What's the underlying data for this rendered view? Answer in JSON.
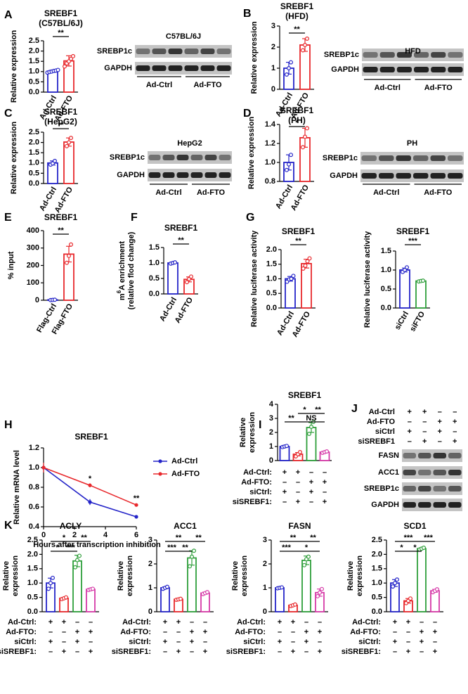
{
  "chart_data": [
    {
      "type": "bar",
      "panel": "A",
      "title": [
        "SREBF1",
        "(C57BL/6J)"
      ],
      "y_label": [
        "Relative expression"
      ],
      "categories": [
        "Ad-Ctrl",
        "Ad-FTO"
      ],
      "values": [
        1.02,
        1.52
      ],
      "errors": [
        0.05,
        0.25
      ],
      "points": [
        [
          0.95,
          0.98,
          1.0,
          1.03,
          1.05,
          1.08
        ],
        [
          1.25,
          1.4,
          1.5,
          1.62,
          1.75
        ]
      ],
      "colors": [
        "#2424c8",
        "#e8282c"
      ],
      "ylim": [
        0,
        2.5
      ],
      "yticks": [
        {
          "value": 0,
          "label": "0.0"
        },
        0.5,
        {
          "value": 1,
          "label": "1.0"
        },
        1.5,
        {
          "value": 2,
          "label": "2.0"
        },
        2.5
      ],
      "significance": [
        "**"
      ]
    },
    {
      "type": "blot",
      "title": "C57BL/6J",
      "rows": [
        "SREBP1c",
        "GAPDH"
      ],
      "groups": [
        "Ad-Ctrl",
        "Ad-FTO"
      ]
    },
    {
      "type": "bar",
      "panel": "B",
      "title": [
        "SREBF1",
        "(HFD)"
      ],
      "y_label": [
        "Relative expression"
      ],
      "categories": [
        "Ad-Ctrl",
        "Ad-FTO"
      ],
      "values": [
        1.0,
        2.1
      ],
      "errors": [
        0.28,
        0.3
      ],
      "points": [
        [
          0.7,
          1.0,
          1.28
        ],
        [
          1.85,
          2.1,
          2.4
        ]
      ],
      "colors": [
        "#2424c8",
        "#e8282c"
      ],
      "ylim": [
        0,
        3
      ],
      "yticks": [
        0,
        1,
        2,
        3
      ],
      "significance": [
        "**"
      ]
    },
    {
      "type": "blot",
      "title": "HFD",
      "rows": [
        "SREBP1c",
        "GAPDH"
      ],
      "groups": [
        "Ad-Ctrl",
        "Ad-FTO"
      ]
    },
    {
      "type": "bar",
      "panel": "C",
      "title": [
        "SREBF1",
        "(HepG2)"
      ],
      "y_label": [
        "Relative expression"
      ],
      "categories": [
        "Ad-Ctrl",
        "Ad-FTO"
      ],
      "values": [
        1.0,
        2.02
      ],
      "errors": [
        0.1,
        0.2
      ],
      "points": [
        [
          0.92,
          0.98,
          1.1
        ],
        [
          1.82,
          2.0,
          2.22
        ]
      ],
      "colors": [
        "#2424c8",
        "#e8282c"
      ],
      "ylim": [
        0,
        2.5
      ],
      "yticks": [
        {
          "value": 0,
          "label": "0.0"
        },
        0.5,
        {
          "value": 1,
          "label": "1.0"
        },
        1.5,
        {
          "value": 2,
          "label": "2.0"
        },
        2.5
      ],
      "significance": [
        "**"
      ]
    },
    {
      "type": "blot",
      "title": "HepG2",
      "rows": [
        "SREBP1c",
        "GAPDH"
      ],
      "groups": [
        "Ad-Ctrl",
        "Ad-FTO"
      ]
    },
    {
      "type": "bar",
      "panel": "D",
      "title": [
        "SREBF1",
        "(PH)"
      ],
      "y_label": [
        "Relative expression"
      ],
      "categories": [
        "Ad-Ctrl",
        "Ad-FTO"
      ],
      "values": [
        1.0,
        1.26
      ],
      "errors": [
        0.08,
        0.1
      ],
      "points": [
        [
          0.92,
          0.98,
          1.08
        ],
        [
          1.16,
          1.27,
          1.36
        ]
      ],
      "colors": [
        "#2424c8",
        "#e8282c"
      ],
      "ylim": [
        0.8,
        1.4
      ],
      "yticks": [
        0.8,
        {
          "value": 1,
          "label": "1.0"
        },
        1.2,
        1.4
      ],
      "significance": [
        "*"
      ]
    },
    {
      "type": "blot",
      "title": "PH",
      "rows": [
        "SREBP1c",
        "GAPDH"
      ],
      "groups": [
        "Ad-Ctrl",
        "Ad-FTO"
      ]
    },
    {
      "type": "bar",
      "panel": "E",
      "title": [
        "SREBF1"
      ],
      "y_label": [
        "% input"
      ],
      "categories": [
        "Flag-Ctrl",
        "Flag-FTO"
      ],
      "values": [
        2,
        265
      ],
      "errors": [
        1,
        45
      ],
      "points": [
        [
          1,
          2,
          3
        ],
        [
          215,
          255,
          320
        ]
      ],
      "colors": [
        "#2424c8",
        "#e8282c"
      ],
      "ylim": [
        0,
        400
      ],
      "yticks": [
        0,
        100,
        200,
        300,
        400
      ],
      "significance": [
        "**"
      ]
    },
    {
      "type": "bar",
      "panel": "F",
      "title": [
        "SREBF1"
      ],
      "y_label": [
        [
          "m",
          "6",
          "A enrichment"
        ],
        "(relative flod change)"
      ],
      "categories": [
        "Ad-Ctrl",
        "Ad-FTO"
      ],
      "values": [
        1.0,
        0.47
      ],
      "errors": [
        0.02,
        0.08
      ],
      "points": [
        [
          0.98,
          1.0,
          1.02
        ],
        [
          0.38,
          0.48,
          0.56
        ]
      ],
      "colors": [
        "#2424c8",
        "#e8282c"
      ],
      "ylim": [
        0,
        1.5
      ],
      "yticks": [
        {
          "value": 0,
          "label": "0.0"
        },
        0.5,
        {
          "value": 1,
          "label": "1.0"
        },
        1.5
      ],
      "significance": [
        "**"
      ]
    },
    {
      "type": "bar",
      "panel": "G",
      "title": [
        "SREBF1"
      ],
      "y_label": [
        "Relative luciferase activity"
      ],
      "categories": [
        "Ad-Ctrl",
        "Ad-FTO"
      ],
      "values": [
        1.0,
        1.52
      ],
      "errors": [
        0.08,
        0.15
      ],
      "points": [
        [
          0.9,
          0.98,
          1.0,
          1.1
        ],
        [
          1.35,
          1.45,
          1.6,
          1.7
        ]
      ],
      "colors": [
        "#2424c8",
        "#e8282c"
      ],
      "ylim": [
        0,
        2
      ],
      "yticks": [
        {
          "value": 0,
          "label": "0.0"
        },
        0.5,
        {
          "value": 1,
          "label": "1.0"
        },
        1.5,
        {
          "value": 2,
          "label": "2.0"
        }
      ],
      "significance": [
        "**"
      ]
    },
    {
      "type": "bar",
      "title": [
        "SREBF1"
      ],
      "y_label": [
        "Relative luciferase activity"
      ],
      "categories": [
        "siCtrl",
        "siFTO"
      ],
      "values": [
        1.0,
        0.71
      ],
      "errors": [
        0.05,
        0.01
      ],
      "points": [
        [
          0.95,
          1.0,
          1.07
        ],
        [
          0.7,
          0.71,
          0.72
        ]
      ],
      "colors": [
        "#2424c8",
        "#2e9e3a"
      ],
      "ylim": [
        0,
        1.5
      ],
      "yticks": [
        {
          "value": 0,
          "label": "0.0"
        },
        0.5,
        {
          "value": 1,
          "label": "1.0"
        },
        1.5
      ],
      "significance": [
        "***"
      ]
    },
    {
      "type": "line",
      "panel": "H",
      "title": "SREBF1",
      "y_label": "Relative mRNA level",
      "x_label": "Hours after transcription inhibition",
      "x": [
        0,
        3,
        6
      ],
      "series": [
        {
          "name": "Ad-Ctrl",
          "color": "#2424c8",
          "values": [
            1.0,
            0.65,
            0.5
          ],
          "errors": [
            0.02,
            0.03,
            0.01
          ]
        },
        {
          "name": "Ad-FTO",
          "color": "#e8282c",
          "values": [
            1.0,
            0.82,
            0.62
          ],
          "errors": [
            0.05,
            0.02,
            0.01
          ]
        }
      ],
      "xlim": [
        0,
        6
      ],
      "xticks": [
        0,
        2,
        4,
        6
      ],
      "ylim": [
        0.4,
        1.2
      ],
      "yticks": [
        0.4,
        0.6,
        0.8,
        {
          "value": 1,
          "label": "1.0"
        },
        1.2
      ],
      "significance": [
        "*",
        "**"
      ]
    },
    {
      "type": "bar",
      "panel": "I",
      "title": [
        "SREBF1"
      ],
      "y_label": [
        "Relative",
        "expression"
      ],
      "conditions": [
        {
          "label": "Ad-Ctrl:",
          "signs": [
            "+",
            "+",
            "–",
            "–"
          ]
        },
        {
          "label": "Ad-FTO:",
          "signs": [
            "–",
            "–",
            "+",
            "+"
          ]
        },
        {
          "label": "siCtrl:",
          "signs": [
            "+",
            "–",
            "+",
            "–"
          ]
        },
        {
          "label": "siSREBF1:",
          "signs": [
            "–",
            "+",
            "–",
            "+"
          ]
        }
      ],
      "values": [
        1.0,
        0.45,
        2.35,
        0.6
      ],
      "errors": [
        0.05,
        0.12,
        0.35,
        0.05
      ],
      "points": [
        [
          0.96,
          1.0,
          1.04
        ],
        [
          0.3,
          0.45,
          0.6
        ],
        [
          1.9,
          2.4,
          2.75
        ],
        [
          0.55,
          0.6,
          0.65
        ]
      ],
      "colors": [
        "#2424c8",
        "#e8282c",
        "#2e9e3a",
        "#d63aa8"
      ],
      "ylim": [
        0,
        4
      ],
      "yticks": [
        0,
        1,
        2,
        3,
        4
      ],
      "significance": [
        "*",
        "**",
        "**",
        "NS"
      ]
    },
    {
      "type": "blot",
      "panel": "J",
      "conditions": [
        {
          "label": "Ad-Ctrl",
          "signs": [
            "+",
            "+",
            "–",
            "–"
          ]
        },
        {
          "label": "Ad-FTO",
          "signs": [
            "–",
            "–",
            "+",
            "+"
          ]
        },
        {
          "label": "siCtrl",
          "signs": [
            "+",
            "–",
            "+",
            "–"
          ]
        },
        {
          "label": "siSREBF1",
          "signs": [
            "–",
            "+",
            "–",
            "+"
          ]
        }
      ],
      "rows": [
        "FASN",
        "ACC1",
        "SREBP1c",
        "GAPDH"
      ]
    },
    {
      "type": "bar",
      "panel": "K",
      "title": [
        "ACLY"
      ],
      "y_label": [
        "Relative",
        "expression"
      ],
      "conditions": [
        {
          "label": "Ad-Ctrl:",
          "signs": [
            "+",
            "+",
            "–",
            "–"
          ]
        },
        {
          "label": "Ad-FTO:",
          "signs": [
            "–",
            "–",
            "+",
            "+"
          ]
        },
        {
          "label": "siCtrl:",
          "signs": [
            "+",
            "–",
            "+",
            "–"
          ]
        },
        {
          "label": "siSREBF1:",
          "signs": [
            "–",
            "+",
            "–",
            "+"
          ]
        }
      ],
      "values": [
        1.0,
        0.47,
        1.77,
        0.78
      ],
      "errors": [
        0.17,
        0.03,
        0.2,
        0.02
      ],
      "points": [
        [
          0.8,
          1.0,
          1.18
        ],
        [
          0.44,
          0.47,
          0.5
        ],
        [
          1.55,
          1.8,
          1.95
        ],
        [
          0.76,
          0.78,
          0.8
        ]
      ],
      "colors": [
        "#2424c8",
        "#e8282c",
        "#2e9e3a",
        "#d63aa8"
      ],
      "ylim": [
        0,
        2.5
      ],
      "yticks": [
        {
          "value": 0,
          "label": "0.0"
        },
        0.5,
        {
          "value": 1,
          "label": "1.0"
        },
        1.5,
        {
          "value": 2,
          "label": "2.0"
        },
        2.5
      ],
      "significance": [
        "*",
        "**",
        "*",
        "***"
      ]
    },
    {
      "type": "bar",
      "title": [
        "ACC1"
      ],
      "y_label": [
        "Relative",
        "expression"
      ],
      "conditions": [
        {
          "label": "Ad-Ctrl:",
          "signs": [
            "+",
            "+",
            "–",
            "–"
          ]
        },
        {
          "label": "Ad-FTO:",
          "signs": [
            "–",
            "–",
            "+",
            "+"
          ]
        },
        {
          "label": "siCtrl:",
          "signs": [
            "+",
            "–",
            "+",
            "–"
          ]
        },
        {
          "label": "siSREBF1:",
          "signs": [
            "–",
            "+",
            "–",
            "+"
          ]
        }
      ],
      "values": [
        1.0,
        0.52,
        2.25,
        0.78
      ],
      "errors": [
        0.04,
        0.02,
        0.3,
        0.04
      ],
      "points": [
        [
          0.96,
          1.0,
          1.04
        ],
        [
          0.5,
          0.52,
          0.54
        ],
        [
          1.9,
          2.3,
          2.55
        ],
        [
          0.74,
          0.78,
          0.82
        ]
      ],
      "colors": [
        "#2424c8",
        "#e8282c",
        "#2e9e3a",
        "#d63aa8"
      ],
      "ylim": [
        0,
        3
      ],
      "yticks": [
        0,
        1,
        2,
        3
      ],
      "significance": [
        "**",
        "**",
        "***",
        "**"
      ]
    },
    {
      "type": "bar",
      "title": [
        "FASN"
      ],
      "y_label": [
        "Relative",
        "expression"
      ],
      "conditions": [
        {
          "label": "Ad-Ctrl:",
          "signs": [
            "+",
            "+",
            "–",
            "–"
          ]
        },
        {
          "label": "Ad-FTO:",
          "signs": [
            "–",
            "–",
            "+",
            "+"
          ]
        },
        {
          "label": "siCtrl:",
          "signs": [
            "+",
            "–",
            "+",
            "–"
          ]
        },
        {
          "label": "siSREBF1:",
          "signs": [
            "–",
            "+",
            "–",
            "+"
          ]
        }
      ],
      "values": [
        1.0,
        0.27,
        2.15,
        0.8
      ],
      "errors": [
        0.02,
        0.03,
        0.18,
        0.15
      ],
      "points": [
        [
          0.98,
          1.0,
          1.02
        ],
        [
          0.24,
          0.27,
          0.3
        ],
        [
          1.95,
          2.2,
          2.3
        ],
        [
          0.65,
          0.8,
          0.95
        ]
      ],
      "colors": [
        "#2424c8",
        "#e8282c",
        "#2e9e3a",
        "#d63aa8"
      ],
      "ylim": [
        0,
        3
      ],
      "yticks": [
        0,
        1,
        2,
        3
      ],
      "significance": [
        "**",
        "**",
        "***",
        "*"
      ]
    },
    {
      "type": "bar",
      "title": [
        "SCD1"
      ],
      "y_label": [
        "Relative",
        "expression"
      ],
      "conditions": [
        {
          "label": "Ad-Ctrl:",
          "signs": [
            "+",
            "+",
            "–",
            "–"
          ]
        },
        {
          "label": "Ad-FTO:",
          "signs": [
            "–",
            "–",
            "+",
            "+"
          ]
        },
        {
          "label": "siCtrl:",
          "signs": [
            "+",
            "–",
            "+",
            "–"
          ]
        },
        {
          "label": "siSREBF1:",
          "signs": [
            "–",
            "+",
            "–",
            "+"
          ]
        }
      ],
      "values": [
        1.0,
        0.38,
        2.2,
        0.73
      ],
      "errors": [
        0.12,
        0.08,
        0.03,
        0.05
      ],
      "points": [
        [
          0.88,
          1.0,
          1.12
        ],
        [
          0.3,
          0.38,
          0.46
        ],
        [
          2.17,
          2.2,
          2.23
        ],
        [
          0.68,
          0.73,
          0.78
        ]
      ],
      "colors": [
        "#2424c8",
        "#e8282c",
        "#2e9e3a",
        "#d63aa8"
      ],
      "ylim": [
        0,
        2.5
      ],
      "yticks": [
        {
          "value": 0,
          "label": "0.0"
        },
        0.5,
        {
          "value": 1,
          "label": "1.0"
        },
        1.5,
        {
          "value": 2,
          "label": "2.0"
        },
        2.5
      ],
      "significance": [
        "***",
        "***",
        "*",
        "*"
      ]
    }
  ]
}
